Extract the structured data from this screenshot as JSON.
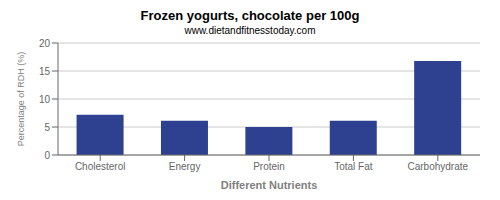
{
  "chart_data": {
    "type": "bar",
    "title": "Frozen yogurts, chocolate per 100g",
    "subtitle": "www.dietandfitnesstoday.com",
    "xlabel": "Different Nutrients",
    "ylabel": "Percentage of RDH (%)",
    "categories": [
      "Cholesterol",
      "Energy",
      "Protein",
      "Total Fat",
      "Carbohydrate"
    ],
    "values": [
      7.2,
      6.1,
      5.0,
      6.1,
      16.8
    ],
    "color": "#2e4090",
    "ylim": [
      0,
      20
    ],
    "yticks": [
      0,
      5,
      10,
      15,
      20
    ],
    "grid": true
  }
}
